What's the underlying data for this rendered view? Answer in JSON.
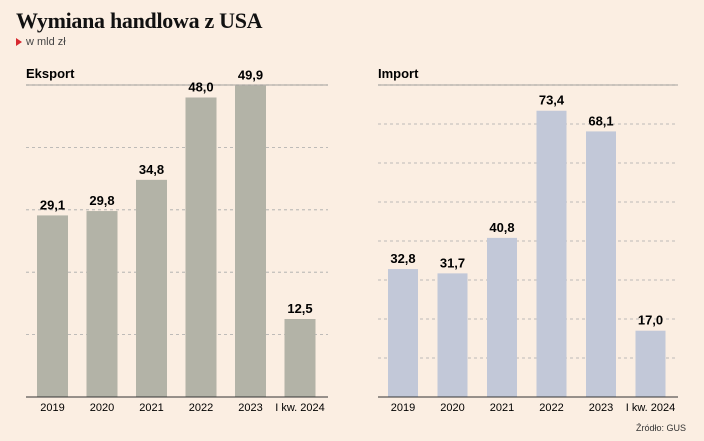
{
  "title": "Wymiana handlowa z USA",
  "subtitle": "w mld zł",
  "source": "Źródło: GUS",
  "colors": {
    "export": "#b3b3a7",
    "import": "#c2c8d8",
    "accent": "#d7282f",
    "background": "#fbeee2"
  },
  "chart_data": [
    {
      "type": "bar",
      "title": "Eksport",
      "categories": [
        "2019",
        "2020",
        "2021",
        "2022",
        "2023",
        "I kw. 2024"
      ],
      "values": [
        29.1,
        29.8,
        34.8,
        48.0,
        49.9,
        12.5
      ],
      "value_labels": [
        "29,1",
        "29,8",
        "34,8",
        "48,0",
        "49,9",
        "12,5"
      ],
      "ylim": [
        0,
        50
      ],
      "grid": true
    },
    {
      "type": "bar",
      "title": "Import",
      "categories": [
        "2019",
        "2020",
        "2021",
        "2022",
        "2023",
        "I kw. 2024"
      ],
      "values": [
        32.8,
        31.7,
        40.8,
        73.4,
        68.1,
        17.0
      ],
      "value_labels": [
        "32,8",
        "31,7",
        "40,8",
        "73,4",
        "68,1",
        "17,0"
      ],
      "ylim": [
        0,
        80
      ],
      "grid": true
    }
  ]
}
